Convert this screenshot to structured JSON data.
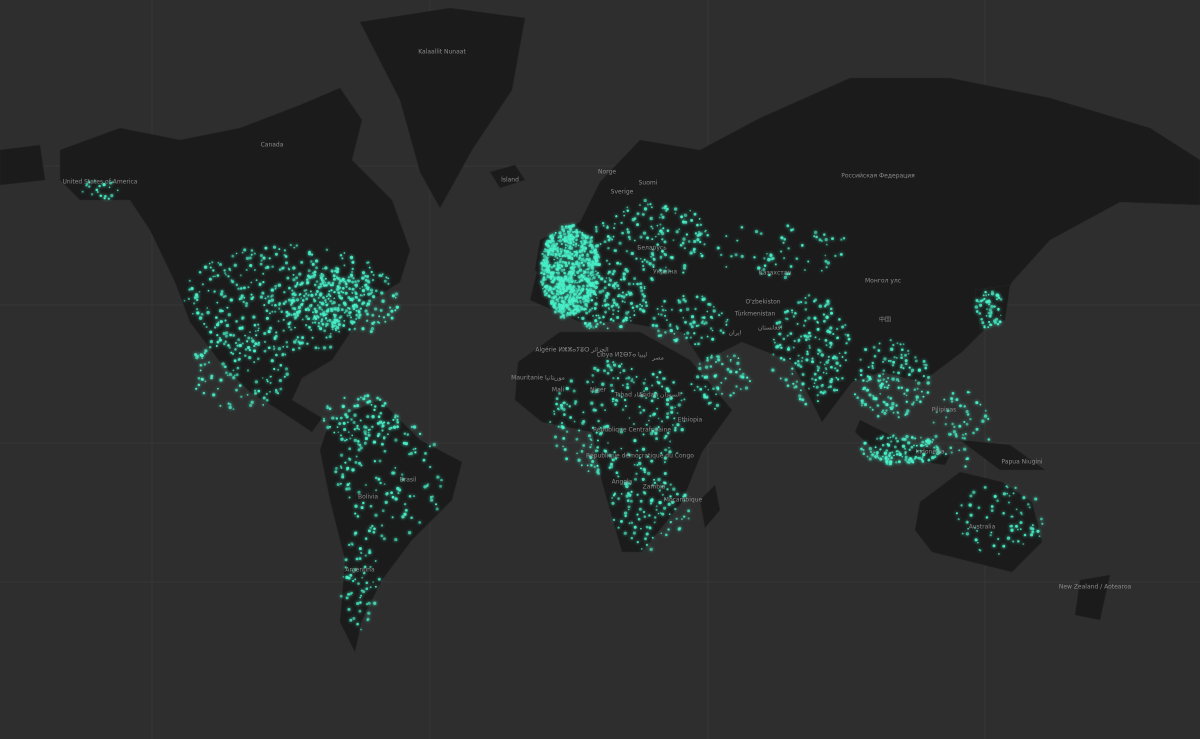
{
  "labels": [
    "Kalaallit Nunaat",
    "Canada",
    "United States of America",
    "Ísland",
    "Norge",
    "Sverige",
    "Suomi",
    "Российская Федерация",
    "Беларусь",
    "Україна",
    "Казахстан",
    "Монгол улс",
    "O'zbekiston",
    "Türkmenistan",
    "ایران",
    "افغانستان",
    "Algérie ⵍⵣⵣⴰⵢⴻⵔ الجزائر",
    "Libya ⵍⵉⴱⵢⴰ ليبيا",
    "مصر",
    "Mauritanie موريتانيا",
    "Mali",
    "Niger",
    "Tchad تشاد",
    "Sudan السودان",
    "République Centrafricaine",
    "Ethiopia",
    "République démocratique du Congo",
    "Angola",
    "Zambia",
    "Moçambique",
    "Brasil",
    "Bolivia",
    "Argentina",
    "中国",
    "Pilipinas",
    "Indonesia",
    "Papua Niugini",
    "Australia",
    "New Zealand / Aotearoa"
  ]
}
